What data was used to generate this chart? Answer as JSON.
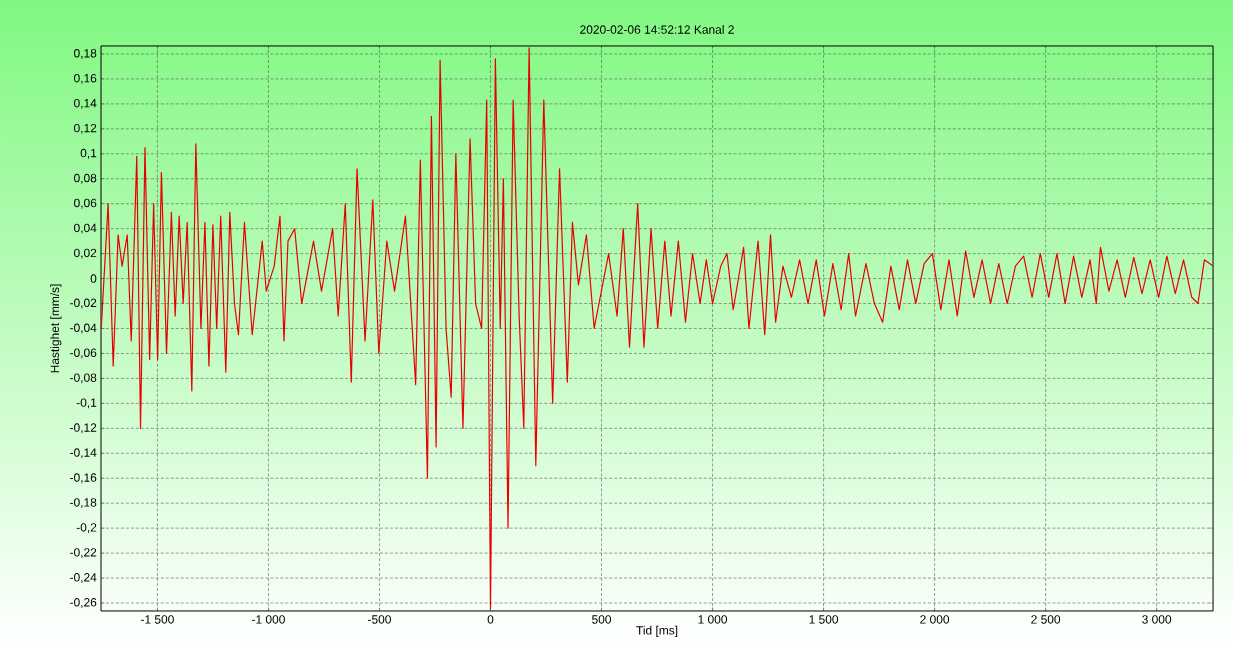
{
  "chart_data": {
    "type": "line",
    "title": "2020-02-06  14:52:12  Kanal 2",
    "xlabel": "Tid [ms]",
    "ylabel": "Hastighet [mm/s]",
    "xlim": [
      -1754,
      3254
    ],
    "ylim": [
      -0.2664,
      0.1864
    ],
    "xticks": [
      {
        "value": -1500,
        "label": "-1 500"
      },
      {
        "value": -1000,
        "label": "-1 000"
      },
      -500,
      0,
      500,
      {
        "value": 1000,
        "label": "1 000"
      },
      {
        "value": 1500,
        "label": "1 500"
      },
      {
        "value": 2000,
        "label": "2 000"
      },
      {
        "value": 2500,
        "label": "2 500"
      },
      {
        "value": 3000,
        "label": "3 000"
      }
    ],
    "yticks": [
      {
        "value": -0.26,
        "label": "-0,26"
      },
      {
        "value": -0.24,
        "label": "-0,24"
      },
      {
        "value": -0.22,
        "label": "-0,22"
      },
      {
        "value": -0.2,
        "label": "-0,2"
      },
      {
        "value": -0.18,
        "label": "-0,18"
      },
      {
        "value": -0.16,
        "label": "-0,16"
      },
      {
        "value": -0.14,
        "label": "-0,14"
      },
      {
        "value": -0.12,
        "label": "-0,12"
      },
      {
        "value": -0.1,
        "label": "-0,1"
      },
      {
        "value": -0.08,
        "label": "-0,08"
      },
      {
        "value": -0.06,
        "label": "-0,06"
      },
      {
        "value": -0.04,
        "label": "-0,04"
      },
      {
        "value": -0.02,
        "label": "-0,02"
      },
      0,
      {
        "value": 0.02,
        "label": "0,02"
      },
      {
        "value": 0.04,
        "label": "0,04"
      },
      {
        "value": 0.06,
        "label": "0,06"
      },
      {
        "value": 0.08,
        "label": "0,08"
      },
      {
        "value": 0.1,
        "label": "0,1"
      },
      {
        "value": 0.12,
        "label": "0,12"
      },
      {
        "value": 0.14,
        "label": "0,14"
      },
      {
        "value": 0.16,
        "label": "0,16"
      },
      {
        "value": 0.18,
        "label": "0,18"
      }
    ],
    "grid": true,
    "marker": "none",
    "line_style": "solid",
    "series": [
      {
        "color": "#e80000",
        "x": [
          -1753,
          -1722,
          -1699,
          -1677,
          -1659,
          -1636,
          -1618,
          -1593,
          -1576,
          -1556,
          -1535,
          -1517,
          -1499,
          -1482,
          -1459,
          -1437,
          -1420,
          -1402,
          -1384,
          -1366,
          -1345,
          -1327,
          -1304,
          -1286,
          -1268,
          -1250,
          -1233,
          -1215,
          -1192,
          -1174,
          -1153,
          -1135,
          -1108,
          -1073,
          -1028,
          -1010,
          -974,
          -948,
          -930,
          -912,
          -882,
          -850,
          -797,
          -761,
          -711,
          -686,
          -654,
          -627,
          -601,
          -565,
          -530,
          -503,
          -467,
          -432,
          -383,
          -337,
          -316,
          -284,
          -266,
          -245,
          -227,
          -200,
          -177,
          -156,
          -124,
          -92,
          -67,
          -40,
          -17,
          0,
          22,
          44,
          58,
          79,
          102,
          129,
          150,
          174,
          204,
          240,
          280,
          311,
          346,
          369,
          396,
          432,
          467,
          532,
          570,
          598,
          626,
          663,
          691,
          723,
          753,
          785,
          813,
          846,
          878,
          910,
          944,
          972,
          1000,
          1037,
          1065,
          1093,
          1140,
          1164,
          1205,
          1235,
          1261,
          1284,
          1317,
          1355,
          1392,
          1430,
          1467,
          1504,
          1542,
          1579,
          1613,
          1644,
          1691,
          1729,
          1766,
          1803,
          1841,
          1878,
          1915,
          1953,
          1990,
          2028,
          2065,
          2102,
          2140,
          2177,
          2214,
          2252,
          2289,
          2327,
          2364,
          2401,
          2439,
          2476,
          2514,
          2551,
          2588,
          2626,
          2663,
          2700,
          2728,
          2747,
          2785,
          2822,
          2859,
          2897,
          2934,
          2971,
          3009,
          3046,
          3084,
          3121,
          3158,
          3186,
          3215,
          3254
        ],
        "values": [
          -0.04,
          0.06,
          -0.07,
          0.035,
          0.01,
          0.035,
          -0.05,
          0.098,
          -0.12,
          0.105,
          -0.065,
          0.06,
          -0.065,
          0.085,
          -0.06,
          0.053,
          -0.03,
          0.05,
          -0.02,
          0.045,
          -0.09,
          0.108,
          -0.04,
          0.045,
          -0.07,
          0.043,
          -0.04,
          0.05,
          -0.075,
          0.053,
          -0.02,
          -0.045,
          0.045,
          -0.045,
          0.03,
          -0.01,
          0.01,
          0.05,
          -0.05,
          0.03,
          0.04,
          -0.02,
          0.03,
          -0.01,
          0.04,
          -0.03,
          0.06,
          -0.083,
          0.088,
          -0.05,
          0.063,
          -0.06,
          0.03,
          -0.01,
          0.05,
          -0.085,
          0.095,
          -0.16,
          0.13,
          -0.135,
          0.175,
          -0.04,
          -0.095,
          0.1,
          -0.12,
          0.112,
          -0.02,
          -0.04,
          0.143,
          -0.265,
          0.176,
          -0.04,
          0.08,
          -0.2,
          0.143,
          -0.03,
          -0.12,
          0.185,
          -0.15,
          0.143,
          -0.1,
          0.088,
          -0.083,
          0.045,
          -0.005,
          0.035,
          -0.04,
          0.02,
          -0.03,
          0.04,
          -0.055,
          0.06,
          -0.055,
          0.04,
          -0.04,
          0.03,
          -0.03,
          0.03,
          -0.035,
          0.02,
          -0.02,
          0.015,
          -0.02,
          0.01,
          0.02,
          -0.025,
          0.025,
          -0.04,
          0.03,
          -0.045,
          0.035,
          -0.035,
          0.01,
          -0.015,
          0.015,
          -0.02,
          0.015,
          -0.03,
          0.012,
          -0.025,
          0.02,
          -0.03,
          0.012,
          -0.02,
          -0.035,
          0.01,
          -0.025,
          0.015,
          -0.02,
          0.012,
          0.02,
          -0.025,
          0.015,
          -0.03,
          0.022,
          -0.015,
          0.015,
          -0.02,
          0.012,
          -0.02,
          0.01,
          0.018,
          -0.015,
          0.02,
          -0.015,
          0.02,
          -0.02,
          0.018,
          -0.015,
          0.015,
          -0.02,
          0.025,
          -0.01,
          0.015,
          -0.015,
          0.017,
          -0.012,
          0.015,
          -0.015,
          0.018,
          -0.012,
          0.015,
          -0.015,
          -0.02,
          0.015,
          0.01
        ]
      }
    ]
  }
}
